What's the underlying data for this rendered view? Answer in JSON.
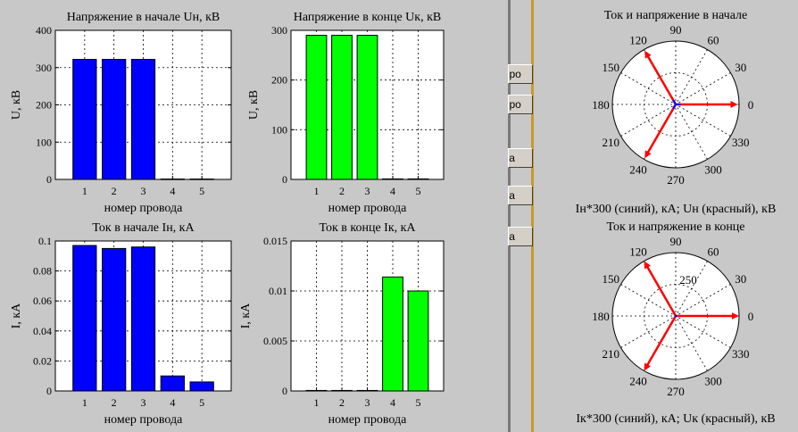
{
  "colors": {
    "background": "#c8c8c8",
    "blue": "#0000ff",
    "green": "#00ff00",
    "red": "#ff0000",
    "separator_left": "#7a7a7a",
    "separator_right": "#c89a2a"
  },
  "side_buttons": [
    "про",
    "про",
    "ва",
    "ва",
    "ва"
  ],
  "chart_data": [
    {
      "id": "uh",
      "type": "bar",
      "title": "Напряжение в начале Uн, кВ",
      "xlabel": "номер провода",
      "ylabel": "U, кВ",
      "categories": [
        "1",
        "2",
        "3",
        "4",
        "5"
      ],
      "values": [
        322,
        322,
        322,
        1,
        1
      ],
      "ylim": [
        0,
        400
      ],
      "yticks": [
        "0",
        "100",
        "200",
        "300",
        "400"
      ],
      "colors": [
        "#0000ff",
        "#0000ff",
        "#0000ff",
        "#0000ff",
        "#0000ff"
      ],
      "grid": true
    },
    {
      "id": "uk",
      "type": "bar",
      "title": "Напряжение в конце Uк, кВ",
      "xlabel": "номер провода",
      "ylabel": "U, кВ",
      "categories": [
        "1",
        "2",
        "3",
        "4",
        "5"
      ],
      "values": [
        290,
        290,
        290,
        1,
        1
      ],
      "ylim": [
        0,
        300
      ],
      "yticks": [
        "0",
        "100",
        "200",
        "300"
      ],
      "colors": [
        "#00ff00",
        "#00ff00",
        "#00ff00",
        "#00ff00",
        "#00ff00"
      ],
      "grid": true
    },
    {
      "id": "ih",
      "type": "bar",
      "title": "Ток в начале Iн, кА",
      "xlabel": "номер провода",
      "ylabel": "I, кА",
      "categories": [
        "1",
        "2",
        "3",
        "4",
        "5"
      ],
      "values": [
        0.097,
        0.095,
        0.096,
        0.01,
        0.006
      ],
      "ylim": [
        0,
        0.1
      ],
      "yticks": [
        "0",
        "0.02",
        "0.04",
        "0.06",
        "0.08",
        "0.1"
      ],
      "colors": [
        "#0000ff",
        "#0000ff",
        "#0000ff",
        "#0000ff",
        "#0000ff"
      ],
      "grid": true
    },
    {
      "id": "ik",
      "type": "bar",
      "title": "Ток в конце Iк, кА",
      "xlabel": "номер провода",
      "ylabel": "I, кА",
      "categories": [
        "1",
        "2",
        "3",
        "4",
        "5"
      ],
      "values": [
        5e-05,
        5e-05,
        5e-05,
        0.0114,
        0.01
      ],
      "ylim": [
        0,
        0.015
      ],
      "yticks": [
        "0",
        "0.005",
        "0.01",
        "0.015"
      ],
      "colors": [
        "#00ff00",
        "#00ff00",
        "#00ff00",
        "#00ff00",
        "#00ff00"
      ],
      "grid": true
    },
    {
      "id": "polar_start",
      "type": "polar",
      "title": "Ток и напряжение в начале",
      "xlabel": "Iн*300 (синий), кА; Uн (красный), кВ",
      "angle_labels": [
        "0",
        "30",
        "60",
        "90",
        "120",
        "150",
        "180",
        "210",
        "240",
        "270",
        "300",
        "330"
      ],
      "radial_labels": [],
      "series": [
        {
          "name": "Iн*300",
          "color": "#0000ff",
          "vectors": [
            {
              "r": 0.08,
              "angle": 0
            },
            {
              "r": 0.08,
              "angle": 120
            },
            {
              "r": 0.08,
              "angle": 240
            }
          ]
        },
        {
          "name": "Uн",
          "color": "#ff0000",
          "vectors": [
            {
              "r": 0.95,
              "angle": 0
            },
            {
              "r": 0.95,
              "angle": 120
            },
            {
              "r": 0.95,
              "angle": 240
            }
          ]
        }
      ]
    },
    {
      "id": "polar_end",
      "type": "polar",
      "title": "Ток и напряжение в конце",
      "xlabel": "Iк*300 (синий), кА; Uк (красный), кВ",
      "angle_labels": [
        "0",
        "30",
        "60",
        "90",
        "120",
        "150",
        "180",
        "210",
        "240",
        "270",
        "300",
        "330"
      ],
      "radial_labels": [
        "250"
      ],
      "series": [
        {
          "name": "Iк*300",
          "color": "#0000ff",
          "vectors": [
            {
              "r": 0.02,
              "angle": 0
            },
            {
              "r": 0.02,
              "angle": 120
            },
            {
              "r": 0.02,
              "angle": 240
            }
          ]
        },
        {
          "name": "Uк",
          "color": "#ff0000",
          "vectors": [
            {
              "r": 0.97,
              "angle": 0
            },
            {
              "r": 0.97,
              "angle": 120
            },
            {
              "r": 0.97,
              "angle": 240
            }
          ]
        }
      ]
    }
  ]
}
